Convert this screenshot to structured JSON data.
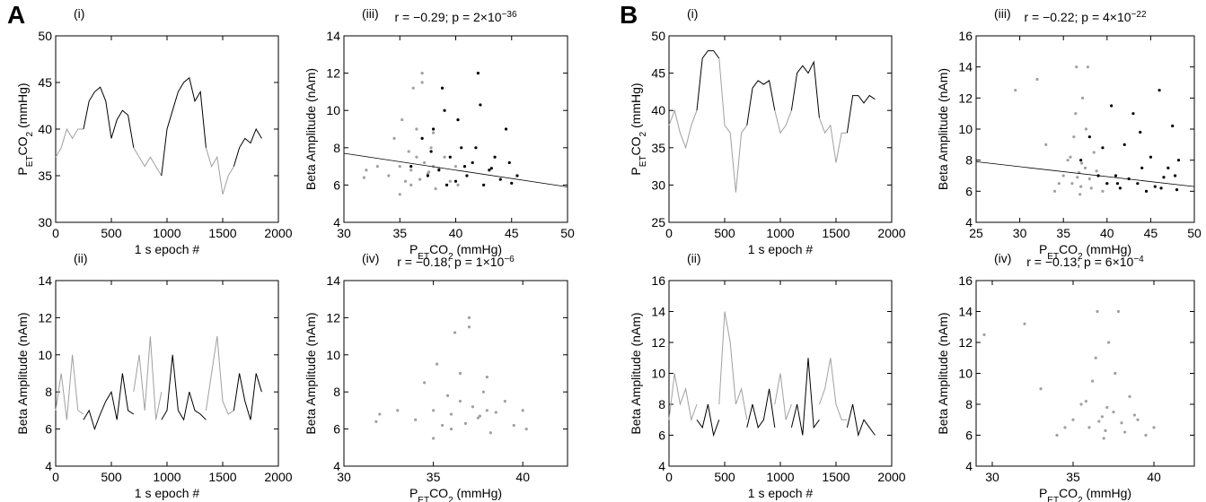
{
  "panel_letters": [
    "A",
    "B"
  ],
  "chart_data": [
    {
      "type": "line",
      "panel": "(i)",
      "xlabel": "1 s epoch #",
      "ylabel": [
        "P",
        "ET",
        "CO",
        "2",
        " (mmHg)"
      ],
      "xlim": [
        0,
        2000
      ],
      "xticks": [
        0,
        500,
        1000,
        1500,
        2000
      ],
      "ylim": [
        30,
        50
      ],
      "yticks": [
        30,
        35,
        40,
        45,
        50
      ],
      "x": [
        0,
        50,
        100,
        150,
        200,
        250,
        300,
        350,
        400,
        450,
        500,
        550,
        600,
        650,
        700,
        750,
        800,
        850,
        900,
        950,
        1000,
        1050,
        1100,
        1150,
        1200,
        1250,
        1300,
        1350,
        1400,
        1450,
        1500,
        1550,
        1600,
        1650,
        1700,
        1750,
        1800,
        1850
      ],
      "series": [
        {
          "color": "#a0a0a0",
          "values": [
            37,
            38,
            40,
            39,
            40,
            40,
            null,
            null,
            null,
            null,
            null,
            null,
            null,
            null,
            38,
            37,
            36,
            37,
            36,
            35,
            null,
            null,
            null,
            null,
            null,
            null,
            null,
            38,
            36,
            37,
            33,
            35,
            36,
            null,
            null,
            null,
            null,
            null
          ]
        },
        {
          "color": "#000000",
          "values": [
            null,
            null,
            null,
            null,
            null,
            40,
            43,
            44,
            44.5,
            43,
            39,
            41,
            42,
            41.5,
            38,
            null,
            null,
            null,
            null,
            35,
            40,
            42,
            44,
            45,
            45.5,
            43,
            44,
            38,
            null,
            null,
            null,
            null,
            36,
            38,
            39,
            38.5,
            40,
            39
          ]
        }
      ]
    },
    {
      "type": "line",
      "panel": "(ii)",
      "xlabel": "1 s epoch #",
      "ylabel": "Beta Amplitude (nAm)",
      "xlim": [
        0,
        2000
      ],
      "xticks": [
        0,
        500,
        1000,
        1500,
        2000
      ],
      "ylim": [
        4,
        14
      ],
      "yticks": [
        4,
        6,
        8,
        10,
        12,
        14
      ],
      "x": [
        0,
        50,
        100,
        150,
        200,
        250,
        300,
        350,
        400,
        450,
        500,
        550,
        600,
        650,
        700,
        750,
        800,
        850,
        900,
        950,
        1000,
        1050,
        1100,
        1150,
        1200,
        1250,
        1300,
        1350,
        1400,
        1450,
        1500,
        1550,
        1600,
        1650,
        1700,
        1750,
        1800,
        1850
      ],
      "series": [
        {
          "color": "#a0a0a0",
          "values": [
            7,
            9,
            6.5,
            10,
            7,
            6.8,
            null,
            null,
            null,
            null,
            null,
            null,
            null,
            null,
            8,
            10,
            7,
            11,
            6.5,
            8,
            null,
            null,
            null,
            null,
            null,
            null,
            null,
            7,
            9,
            11,
            7.5,
            6.8,
            7,
            null,
            null,
            null,
            null,
            null
          ]
        },
        {
          "color": "#000000",
          "values": [
            null,
            null,
            null,
            null,
            null,
            6.5,
            7,
            6,
            6.8,
            7.5,
            8,
            6.5,
            9,
            7,
            6.8,
            null,
            null,
            null,
            null,
            6.5,
            7,
            10,
            7,
            6.5,
            8,
            7,
            6.8,
            6.5,
            null,
            null,
            null,
            null,
            7,
            9,
            7.5,
            6.5,
            9,
            8
          ]
        }
      ]
    },
    {
      "type": "scatter",
      "panel": "(iii)",
      "annotation": [
        "r = −0.29; p = 2×10",
        "−36"
      ],
      "xlabel": [
        "P",
        "ET",
        "CO",
        "2",
        " (mmHg)"
      ],
      "ylabel": "Beta Amplitude (nAm)",
      "xlim": [
        30,
        50
      ],
      "xticks": [
        30,
        35,
        40,
        45,
        50
      ],
      "ylim": [
        4,
        14
      ],
      "yticks": [
        4,
        6,
        8,
        10,
        12,
        14
      ],
      "series": [
        {
          "color": "#a0a0a0",
          "x": [
            33,
            34,
            34.5,
            35,
            35.2,
            35.5,
            35.8,
            36,
            36.2,
            36.5,
            36.8,
            37,
            37.2,
            37.5,
            37.8,
            38,
            38.2,
            38.5,
            39,
            39.5,
            40,
            40.2,
            32,
            31.8,
            36.5,
            37,
            35,
            36,
            38,
            37.6
          ],
          "values": [
            7,
            6.5,
            8.5,
            7,
            9.5,
            6.2,
            7.8,
            6.8,
            11.2,
            7.5,
            6.3,
            12,
            7.2,
            6.6,
            8,
            7,
            5.8,
            6.9,
            7.5,
            6.2,
            7,
            6,
            6.8,
            6.4,
            9,
            11.5,
            5.5,
            6,
            8.8,
            6.7
          ]
        },
        {
          "color": "#000000",
          "x": [
            36,
            37,
            37.5,
            38,
            38.5,
            39,
            39.5,
            40,
            40.5,
            41,
            41.5,
            42,
            42.5,
            43,
            43.5,
            44,
            44.5,
            45,
            45.5,
            38.8,
            40.2,
            41.8,
            43.2,
            44.8,
            39.2,
            42.2,
            37.8,
            40.8
          ],
          "values": [
            7,
            8.5,
            6.5,
            9,
            6.8,
            10,
            7.5,
            6.2,
            8,
            6.5,
            7.2,
            12,
            6,
            6.8,
            7.5,
            6.3,
            9,
            6.1,
            6.5,
            11.2,
            9.5,
            8,
            6.9,
            7.2,
            6,
            10.3,
            7.8,
            7
          ]
        }
      ],
      "fit": {
        "x": [
          30,
          50
        ],
        "y": [
          7.7,
          5.9
        ]
      }
    },
    {
      "type": "scatter",
      "panel": "(iv)",
      "annotation": [
        "r = −0.18; p = 1×10",
        "−6"
      ],
      "xlabel": [
        "P",
        "ET",
        "CO",
        "2",
        " (mmHg)"
      ],
      "ylabel": "Beta Amplitude (nAm)",
      "xlim": [
        30,
        42.5
      ],
      "xticks": [
        30,
        35,
        40
      ],
      "ylim": [
        4,
        14
      ],
      "yticks": [
        4,
        6,
        8,
        10,
        12,
        14
      ],
      "series": [
        {
          "color": "#a0a0a0",
          "x": [
            33,
            34,
            34.5,
            35,
            35.2,
            35.5,
            35.8,
            36,
            36.2,
            36.5,
            36.8,
            37,
            37.2,
            37.5,
            37.8,
            38,
            38.2,
            38.5,
            39,
            39.5,
            40,
            40.2,
            32,
            31.8,
            36.5,
            37,
            35,
            36,
            38,
            37.6
          ],
          "values": [
            7,
            6.5,
            8.5,
            7,
            9.5,
            6.2,
            7.8,
            6.8,
            11.2,
            7.5,
            6.3,
            12,
            7.2,
            6.6,
            8,
            7,
            5.8,
            6.9,
            7.5,
            6.2,
            7,
            6,
            6.8,
            6.4,
            9,
            11.5,
            5.5,
            6,
            8.8,
            6.7
          ]
        }
      ]
    },
    {
      "type": "line",
      "panel": "(i)",
      "xlabel": "1 s epoch #",
      "ylabel": [
        "P",
        "ET",
        "CO",
        "2",
        " (mmHg)"
      ],
      "xlim": [
        0,
        2000
      ],
      "xticks": [
        0,
        500,
        1000,
        1500,
        2000
      ],
      "ylim": [
        25,
        50
      ],
      "yticks": [
        25,
        30,
        35,
        40,
        45,
        50
      ],
      "x": [
        0,
        50,
        100,
        150,
        200,
        250,
        300,
        350,
        400,
        450,
        500,
        550,
        600,
        650,
        700,
        750,
        800,
        850,
        900,
        950,
        1000,
        1050,
        1100,
        1150,
        1200,
        1250,
        1300,
        1350,
        1400,
        1450,
        1500,
        1550,
        1600,
        1650,
        1700,
        1750,
        1800,
        1850
      ],
      "series": [
        {
          "color": "#a0a0a0",
          "values": [
            38,
            40,
            37,
            35,
            38,
            40,
            null,
            null,
            null,
            47,
            38,
            37,
            29,
            37,
            38,
            null,
            null,
            null,
            null,
            40,
            37,
            38,
            40,
            null,
            null,
            null,
            null,
            39,
            37,
            38,
            33,
            37,
            37,
            null,
            null,
            null,
            null,
            null
          ]
        },
        {
          "color": "#000000",
          "values": [
            null,
            null,
            null,
            null,
            null,
            40,
            47,
            48,
            48,
            47,
            null,
            null,
            null,
            null,
            38,
            43,
            44,
            43.5,
            44,
            40,
            null,
            null,
            40,
            45,
            46,
            45,
            46.5,
            39,
            null,
            null,
            null,
            null,
            37,
            42,
            42,
            41,
            42,
            41.5
          ]
        }
      ]
    },
    {
      "type": "line",
      "panel": "(ii)",
      "xlabel": "1 s epoch #",
      "ylabel": "Beta Amplitude (nAm)",
      "xlim": [
        0,
        2000
      ],
      "xticks": [
        0,
        500,
        1000,
        1500,
        2000
      ],
      "ylim": [
        4,
        16
      ],
      "yticks": [
        4,
        6,
        8,
        10,
        12,
        14,
        16
      ],
      "x": [
        0,
        50,
        100,
        150,
        200,
        250,
        300,
        350,
        400,
        450,
        500,
        550,
        600,
        650,
        700,
        750,
        800,
        850,
        900,
        950,
        1000,
        1050,
        1100,
        1150,
        1200,
        1250,
        1300,
        1350,
        1400,
        1450,
        1500,
        1550,
        1600,
        1650,
        1700,
        1750,
        1800,
        1850
      ],
      "series": [
        {
          "color": "#a0a0a0",
          "values": [
            7,
            10,
            8,
            9,
            7,
            8,
            null,
            null,
            null,
            8,
            14,
            12,
            8,
            9,
            7,
            null,
            null,
            null,
            null,
            8,
            10,
            7,
            8,
            null,
            null,
            null,
            null,
            8,
            9,
            11,
            8,
            7,
            7,
            null,
            null,
            null,
            null,
            null
          ]
        },
        {
          "color": "#000000",
          "values": [
            null,
            null,
            null,
            null,
            null,
            7,
            6.5,
            8,
            6,
            7,
            null,
            null,
            null,
            null,
            6.5,
            8,
            6.5,
            7,
            9,
            6.5,
            null,
            null,
            6.5,
            8,
            6,
            11,
            6.5,
            7,
            null,
            null,
            null,
            null,
            6.5,
            8,
            6,
            7,
            6.5,
            6
          ]
        }
      ]
    },
    {
      "type": "scatter",
      "panel": "(iii)",
      "annotation": [
        "r = −0.22; p = 4×10",
        "−22"
      ],
      "xlabel": [
        "P",
        "ET",
        "CO",
        "2",
        " (mmHg)"
      ],
      "ylabel": "Beta Amplitude (nAm)",
      "xlim": [
        25,
        50
      ],
      "xticks": [
        25,
        30,
        35,
        40,
        45,
        50
      ],
      "ylim": [
        4,
        16
      ],
      "yticks": [
        4,
        6,
        8,
        10,
        12,
        14,
        16
      ],
      "series": [
        {
          "color": "#a0a0a0",
          "x": [
            29.5,
            32,
            33,
            34,
            35,
            35.5,
            36,
            36.2,
            36.5,
            36.8,
            37,
            37.2,
            37.5,
            37.8,
            38,
            38.5,
            39,
            39.5,
            40,
            36.4,
            37.6,
            36.9,
            35.8,
            38.2,
            37.1,
            36.6,
            34.5,
            38.8
          ],
          "values": [
            12.5,
            13.2,
            9,
            6,
            7,
            8,
            6.5,
            9.5,
            14,
            7.2,
            6.3,
            12,
            7.5,
            14,
            6.8,
            8.5,
            7,
            6,
            6.5,
            11,
            10,
            5.8,
            8.2,
            6.2,
            7.8,
            6.9,
            6.5,
            7.3
          ]
        },
        {
          "color": "#000000",
          "x": [
            37,
            38,
            39,
            40,
            40.5,
            41,
            41.5,
            42,
            42.5,
            43,
            43.5,
            44,
            44.5,
            45,
            45.5,
            46,
            46.5,
            47,
            47.5,
            48,
            48.2,
            41.2,
            43.8,
            46.2,
            47.8,
            39.5
          ],
          "values": [
            8,
            9.5,
            7,
            6.5,
            11.5,
            7,
            6.2,
            9,
            6.8,
            11,
            6.5,
            7.5,
            6,
            8.2,
            6.3,
            12.5,
            6.9,
            7.5,
            10.2,
            6.1,
            8,
            6.5,
            9.8,
            6.2,
            7,
            8.8
          ]
        }
      ],
      "fit": {
        "x": [
          25,
          50
        ],
        "y": [
          7.9,
          6.3
        ]
      }
    },
    {
      "type": "scatter",
      "panel": "(iv)",
      "annotation": [
        "r = −0.13; p = 6×10",
        "−4"
      ],
      "xlabel": [
        "P",
        "ET",
        "CO",
        "2",
        " (mmHg)"
      ],
      "ylabel": "Beta Amplitude (nAm)",
      "xlim": [
        29,
        42.5
      ],
      "xticks": [
        30,
        35,
        40
      ],
      "ylim": [
        4,
        16
      ],
      "yticks": [
        4,
        6,
        8,
        10,
        12,
        14,
        16
      ],
      "series": [
        {
          "color": "#a0a0a0",
          "x": [
            29.5,
            32,
            33,
            34,
            35,
            35.5,
            36,
            36.2,
            36.5,
            36.8,
            37,
            37.2,
            37.5,
            37.8,
            38,
            38.5,
            39,
            39.5,
            40,
            36.4,
            37.6,
            36.9,
            35.8,
            38.2,
            37.1,
            36.6,
            34.5,
            38.8
          ],
          "values": [
            12.5,
            13.2,
            9,
            6,
            7,
            8,
            6.5,
            9.5,
            14,
            7.2,
            6.3,
            12,
            7.5,
            14,
            6.8,
            8.5,
            7,
            6,
            6.5,
            11,
            10,
            5.8,
            8.2,
            6.2,
            7.8,
            6.9,
            6.5,
            7.3
          ]
        }
      ]
    }
  ]
}
